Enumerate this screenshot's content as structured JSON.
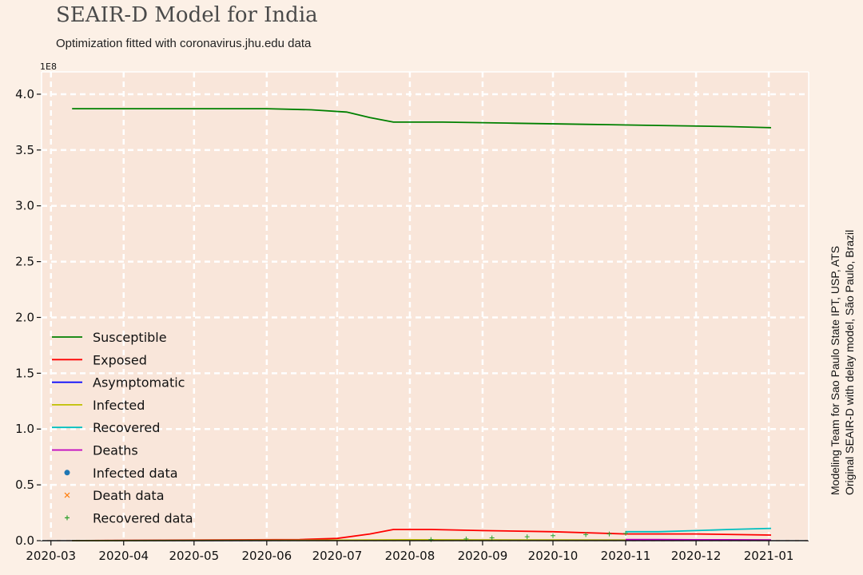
{
  "header": {
    "title": "SEAIR-D Model for India",
    "subtitle": "Optimization fitted with coronavirus.jhu.edu data"
  },
  "side_note": {
    "line1": "Modeling Team for Sao Paulo State IPT, USP, ATS",
    "line2": "Original SEAIR-D with delay model, São Paulo, Brazil"
  },
  "chart_data": {
    "type": "line",
    "title": "SEAIR-D Model for India",
    "subtitle": "Optimization fitted with coronavirus.jhu.edu data",
    "y_multiplier_label": "1E8",
    "ylim": [
      0,
      4.2
    ],
    "y_ticks": [
      0.0,
      0.5,
      1.0,
      1.5,
      2.0,
      2.5,
      3.0,
      3.5,
      4.0
    ],
    "y_tick_labels": [
      "0.0",
      "0.5",
      "1.0",
      "1.5",
      "2.0",
      "2.5",
      "3.0",
      "3.5",
      "4.0"
    ],
    "xlim": [
      "2020-02-26",
      "2021-01-18"
    ],
    "x_ticks": [
      "2020-03-01",
      "2020-04-01",
      "2020-05-01",
      "2020-06-01",
      "2020-07-01",
      "2020-08-01",
      "2020-09-01",
      "2020-10-01",
      "2020-11-01",
      "2020-12-01",
      "2021-01-01"
    ],
    "x_tick_labels": [
      "2020-03",
      "2020-04",
      "2020-05",
      "2020-06",
      "2020-07",
      "2020-08",
      "2020-09",
      "2020-10",
      "2020-11",
      "2020-12",
      "2021-01"
    ],
    "grid": true,
    "legend_position": "lower-left",
    "series": [
      {
        "name": "Susceptible",
        "kind": "line",
        "color": "#008000",
        "x": [
          "2020-03-10",
          "2020-04-01",
          "2020-05-01",
          "2020-06-01",
          "2020-06-20",
          "2020-07-05",
          "2020-07-15",
          "2020-07-25",
          "2020-08-15",
          "2020-09-15",
          "2020-10-15",
          "2020-11-15",
          "2020-12-15",
          "2021-01-02"
        ],
        "values": [
          3.87,
          3.87,
          3.87,
          3.87,
          3.86,
          3.84,
          3.79,
          3.75,
          3.75,
          3.74,
          3.73,
          3.72,
          3.71,
          3.7
        ]
      },
      {
        "name": "Exposed",
        "kind": "line",
        "color": "#ff0000",
        "x": [
          "2020-03-10",
          "2020-06-15",
          "2020-07-01",
          "2020-07-15",
          "2020-07-25",
          "2020-08-10",
          "2020-09-01",
          "2020-10-01",
          "2020-11-01",
          "2020-12-01",
          "2021-01-02"
        ],
        "values": [
          0.0,
          0.01,
          0.02,
          0.06,
          0.1,
          0.1,
          0.09,
          0.08,
          0.06,
          0.06,
          0.05
        ]
      },
      {
        "name": "Asymptomatic",
        "kind": "line",
        "color": "#0000ff",
        "x": [
          "2020-03-10",
          "2020-07-01",
          "2020-08-01",
          "2020-10-01",
          "2021-01-02"
        ],
        "values": [
          0.0,
          0.003,
          0.006,
          0.005,
          0.004
        ]
      },
      {
        "name": "Infected",
        "kind": "line",
        "color": "#bfbf00",
        "x": [
          "2020-03-10",
          "2020-07-01",
          "2020-08-01",
          "2020-10-01",
          "2021-01-02"
        ],
        "values": [
          0.0,
          0.004,
          0.008,
          0.006,
          0.005
        ]
      },
      {
        "name": "Recovered",
        "kind": "line",
        "color": "#00bfbf",
        "x": [
          "2020-11-01",
          "2020-11-15",
          "2020-12-01",
          "2020-12-15",
          "2021-01-02"
        ],
        "values": [
          0.08,
          0.08,
          0.09,
          0.1,
          0.11
        ]
      },
      {
        "name": "Deaths",
        "kind": "line",
        "color": "#bf00bf",
        "x": [
          "2020-11-01",
          "2020-11-15",
          "2020-12-01",
          "2020-12-15",
          "2021-01-02"
        ],
        "values": [
          0.01,
          0.01,
          0.008,
          0.008,
          0.006
        ]
      },
      {
        "name": "Infected data",
        "kind": "scatter",
        "marker": "dot",
        "color": "#1f77b4",
        "x": [],
        "values": []
      },
      {
        "name": "Death data",
        "kind": "scatter",
        "marker": "x",
        "color": "#ff7f0e",
        "x": [],
        "values": []
      },
      {
        "name": "Recovered data",
        "kind": "scatter",
        "marker": "plus",
        "color": "#2ca02c",
        "x": [
          "2020-08-10",
          "2020-08-25",
          "2020-09-05",
          "2020-09-20",
          "2020-10-01",
          "2020-10-15",
          "2020-10-25",
          "2020-11-01"
        ],
        "values": [
          0.01,
          0.015,
          0.025,
          0.035,
          0.045,
          0.055,
          0.06,
          0.065
        ]
      }
    ]
  }
}
